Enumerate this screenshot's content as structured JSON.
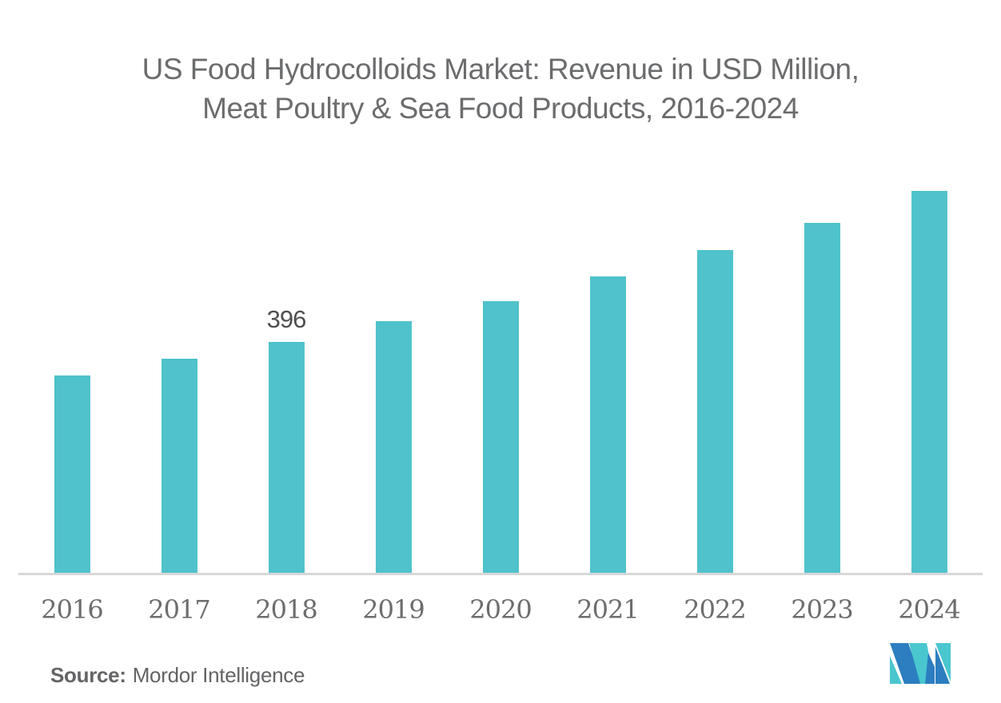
{
  "title": {
    "line1": "US Food Hydrocolloids Market: Revenue in USD Million,",
    "line2": "Meat Poultry & Sea Food Products, 2016-2024"
  },
  "source": {
    "label": "Source:",
    "text": "Mordor Intelligence"
  },
  "logo": {
    "name": "mordor-intelligence-logo",
    "teal": "#4AC6CF",
    "blue": "#2C7EC0"
  },
  "colors": {
    "bar": "#50C2CB",
    "axis_line": "#D8D8D8",
    "title_text": "#6B6C6E",
    "tick_text": "#6C6D6F",
    "data_label_text": "#4E4F51",
    "source_text": "#636466"
  },
  "chart_data": {
    "type": "bar",
    "title": "US Food Hydrocolloids Market: Revenue in USD Million, Meat Poultry & Sea Food Products, 2016-2024",
    "categories": [
      "2016",
      "2017",
      "2018",
      "2019",
      "2020",
      "2021",
      "2022",
      "2023",
      "2024"
    ],
    "values": [
      338,
      367,
      396,
      431,
      466,
      508,
      554,
      600,
      655
    ],
    "series_name": "Revenue in USD Million",
    "data_labels": [
      {
        "category": "2018",
        "text": "396"
      }
    ],
    "value_axis_visible": false,
    "gridlines": false,
    "legend": "none",
    "bar_color": "#50C2CB"
  }
}
